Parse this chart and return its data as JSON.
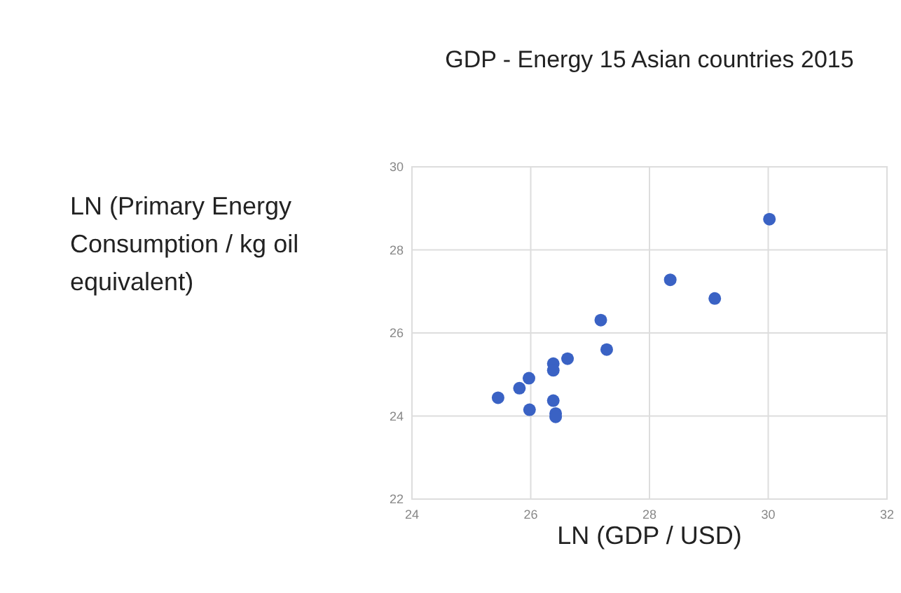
{
  "chart_data": {
    "type": "scatter",
    "title": "GDP - Energy 15 Asian countries 2015",
    "xlabel": "LN (GDP / USD)",
    "ylabel": "LN (Primary Energy Consumption / kg oil equivalent)",
    "x": [
      25.45,
      25.81,
      25.97,
      25.98,
      26.38,
      26.38,
      26.62,
      26.38,
      26.42,
      26.42,
      27.18,
      27.28,
      28.35,
      29.1,
      30.02
    ],
    "series": [
      {
        "color": "#3a62c4",
        "values": [
          24.44,
          24.67,
          24.91,
          24.15,
          25.26,
          25.1,
          25.38,
          24.37,
          24.06,
          23.98,
          26.31,
          25.6,
          27.28,
          26.83,
          28.74
        ]
      }
    ],
    "xlim": [
      24,
      32
    ],
    "xticks": [
      24,
      26,
      28,
      30,
      32
    ],
    "ylim": [
      22,
      30
    ],
    "yticks": [
      22,
      24,
      26,
      28,
      30
    ],
    "grid": true,
    "marker": "circle"
  }
}
